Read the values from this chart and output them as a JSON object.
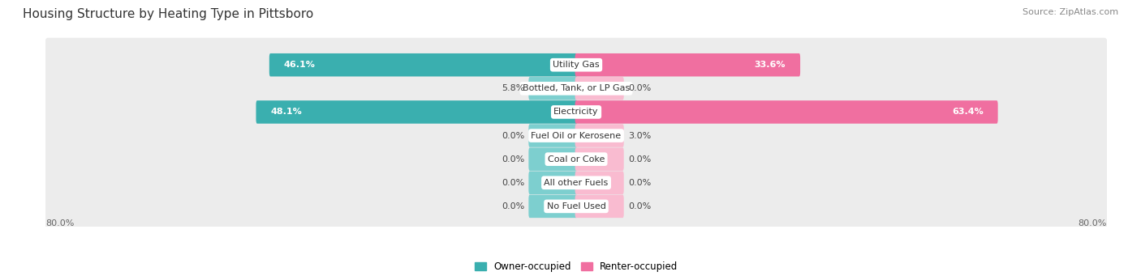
{
  "title": "Housing Structure by Heating Type in Pittsboro",
  "source": "Source: ZipAtlas.com",
  "categories": [
    "Utility Gas",
    "Bottled, Tank, or LP Gas",
    "Electricity",
    "Fuel Oil or Kerosene",
    "Coal or Coke",
    "All other Fuels",
    "No Fuel Used"
  ],
  "owner_values": [
    46.1,
    5.8,
    48.1,
    0.0,
    0.0,
    0.0,
    0.0
  ],
  "renter_values": [
    33.6,
    0.0,
    63.4,
    3.0,
    0.0,
    0.0,
    0.0
  ],
  "owner_color_dark": "#3AAFAF",
  "owner_color_light": "#7DCFCF",
  "renter_color_dark": "#F06FA0",
  "renter_color_light": "#F9BBD0",
  "axis_max": 80.0,
  "background_color": "#ffffff",
  "row_bg_color": "#ececec",
  "title_fontsize": 11,
  "source_fontsize": 8,
  "value_fontsize": 8,
  "category_fontsize": 8,
  "bar_height": 0.62,
  "min_bar_width": 7.0,
  "legend_owner": "Owner-occupied",
  "legend_renter": "Renter-occupied"
}
